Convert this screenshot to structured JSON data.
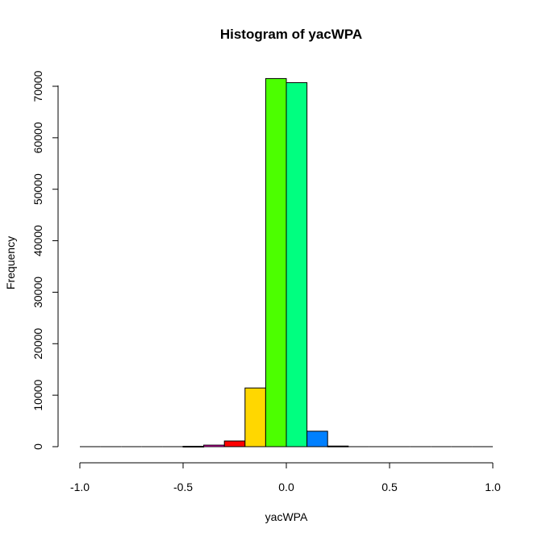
{
  "chart_data": {
    "type": "bar",
    "title": "Histogram of yacWPA",
    "xlabel": "yacWPA",
    "ylabel": "Frequency",
    "xlim": [
      -1.0,
      1.0
    ],
    "ylim": [
      0,
      70000
    ],
    "x_ticks": [
      "-1.0",
      "-0.5",
      "0.0",
      "0.5",
      "1.0"
    ],
    "y_ticks": [
      "0",
      "10000",
      "20000",
      "30000",
      "40000",
      "50000",
      "60000",
      "70000"
    ],
    "bins": [
      {
        "start": -1.0,
        "end": -0.9,
        "value": 0,
        "color": "#ff0000"
      },
      {
        "start": -0.9,
        "end": -0.8,
        "value": 0,
        "color": "#ff0000"
      },
      {
        "start": -0.8,
        "end": -0.7,
        "value": 0,
        "color": "#ff0000"
      },
      {
        "start": -0.7,
        "end": -0.6,
        "value": 0,
        "color": "#ff0000"
      },
      {
        "start": -0.6,
        "end": -0.5,
        "value": 0,
        "color": "#ff0000"
      },
      {
        "start": -0.5,
        "end": -0.4,
        "value": 80,
        "color": "#e8001a"
      },
      {
        "start": -0.4,
        "end": -0.3,
        "value": 300,
        "color": "#ff00cc"
      },
      {
        "start": -0.3,
        "end": -0.2,
        "value": 1100,
        "color": "#ff0000"
      },
      {
        "start": -0.2,
        "end": -0.1,
        "value": 11400,
        "color": "#ffd700"
      },
      {
        "start": -0.1,
        "end": 0.0,
        "value": 71500,
        "color": "#4cff00"
      },
      {
        "start": 0.0,
        "end": 0.1,
        "value": 70700,
        "color": "#00ff80"
      },
      {
        "start": 0.1,
        "end": 0.2,
        "value": 3000,
        "color": "#0080ff"
      },
      {
        "start": 0.2,
        "end": 0.3,
        "value": 120,
        "color": "#4400ff"
      },
      {
        "start": 0.3,
        "end": 0.4,
        "value": 0,
        "color": "#ff0000"
      },
      {
        "start": 0.4,
        "end": 0.5,
        "value": 0,
        "color": "#ff0000"
      },
      {
        "start": 0.5,
        "end": 0.6,
        "value": 0,
        "color": "#ff0000"
      },
      {
        "start": 0.6,
        "end": 0.7,
        "value": 0,
        "color": "#ff0000"
      },
      {
        "start": 0.7,
        "end": 0.8,
        "value": 0,
        "color": "#ff0000"
      },
      {
        "start": 0.8,
        "end": 0.9,
        "value": 0,
        "color": "#ff0000"
      },
      {
        "start": 0.9,
        "end": 1.0,
        "value": 0,
        "color": "#ff0000"
      }
    ],
    "grid": false,
    "legend": "none"
  }
}
